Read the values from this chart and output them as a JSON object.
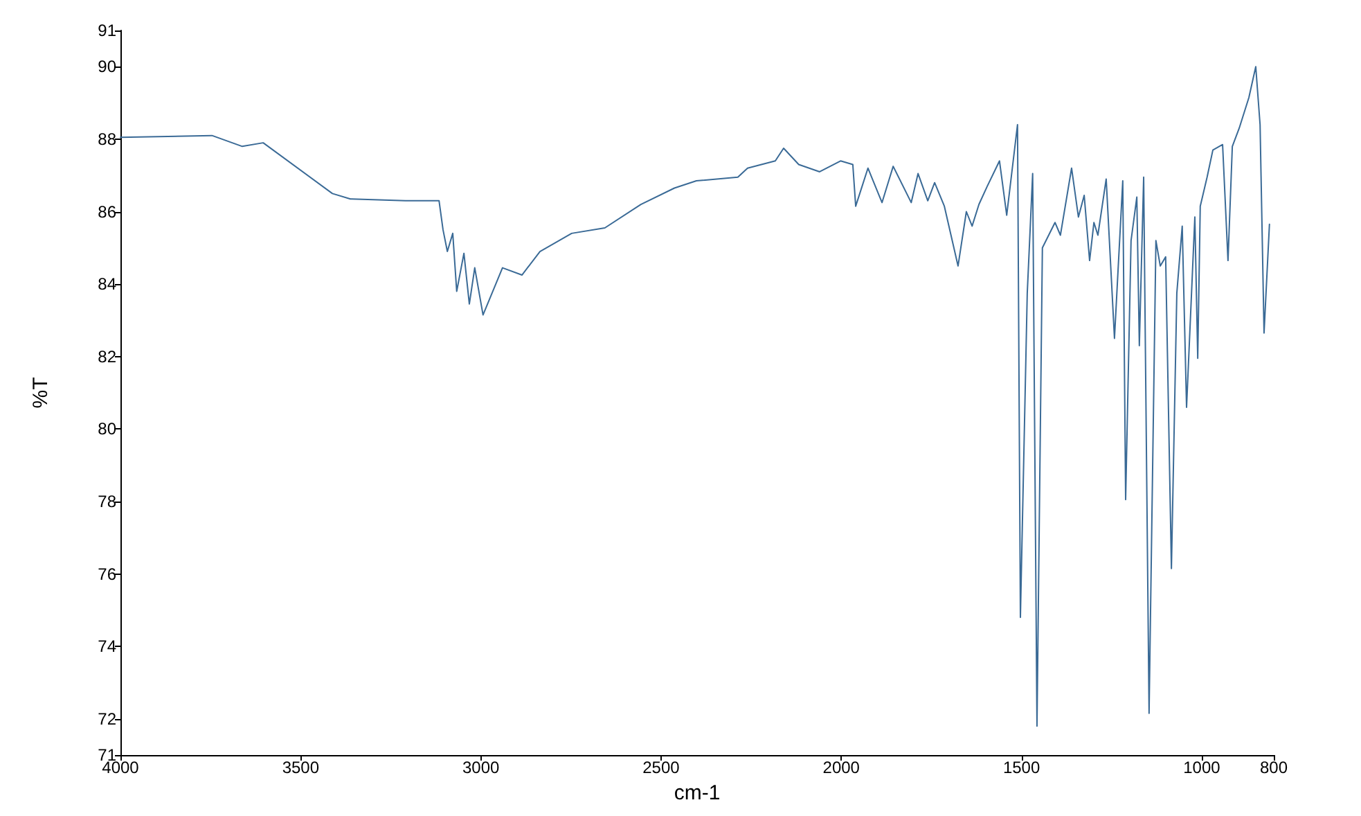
{
  "chart_data": {
    "type": "line",
    "xlabel": "cm-1",
    "ylabel": "%T",
    "xlim": [
      4000,
      800
    ],
    "xticks": [
      4000,
      3500,
      3000,
      2500,
      2000,
      1500,
      1000,
      800
    ],
    "ylim": [
      71,
      91
    ],
    "yticks": [
      71,
      72,
      74,
      76,
      78,
      80,
      82,
      84,
      86,
      88,
      90,
      91
    ],
    "grid": false,
    "marker": "none",
    "line_style": "solid",
    "series": [
      {
        "color": "#3a6a96",
        "x": [
          4000,
          3746,
          3662,
          3604,
          3412,
          3362,
          3209,
          3116,
          3105,
          3093,
          3078,
          3067,
          3047,
          3032,
          3017,
          2994,
          2940,
          2886,
          2836,
          2748,
          2656,
          2556,
          2463,
          2402,
          2287,
          2260,
          2183,
          2160,
          2118,
          2060,
          2002,
          1968,
          1960,
          1926,
          1887,
          1856,
          1806,
          1787,
          1760,
          1741,
          1714,
          1676,
          1653,
          1637,
          1618,
          1595,
          1561,
          1541,
          1511,
          1503,
          1484,
          1469,
          1457,
          1442,
          1407,
          1392,
          1361,
          1342,
          1326,
          1311,
          1299,
          1288,
          1265,
          1242,
          1219,
          1211,
          1196,
          1180,
          1173,
          1161,
          1146,
          1127,
          1115,
          1100,
          1084,
          1069,
          1054,
          1042,
          1019,
          1011,
          1004,
          985,
          969,
          942,
          927,
          915,
          896,
          869,
          850,
          838,
          827,
          812
        ],
        "values": [
          88.05,
          88.1,
          87.8,
          87.9,
          86.5,
          86.35,
          86.3,
          86.3,
          85.5,
          84.9,
          85.4,
          83.8,
          84.85,
          83.45,
          84.45,
          83.15,
          84.45,
          84.25,
          84.9,
          85.4,
          85.55,
          86.2,
          86.65,
          86.85,
          86.95,
          87.2,
          87.4,
          87.75,
          87.3,
          87.1,
          87.4,
          87.3,
          86.15,
          87.2,
          86.25,
          87.25,
          86.25,
          87.05,
          86.3,
          86.8,
          86.15,
          84.5,
          86.0,
          85.6,
          86.2,
          86.7,
          87.4,
          85.9,
          88.4,
          74.8,
          83.75,
          87.05,
          71.8,
          85.0,
          85.7,
          85.35,
          87.2,
          85.85,
          86.45,
          84.65,
          85.7,
          85.35,
          86.9,
          82.5,
          86.85,
          78.05,
          85.2,
          86.4,
          82.3,
          86.95,
          72.15,
          85.2,
          84.5,
          84.75,
          76.15,
          83.75,
          85.6,
          80.6,
          85.85,
          81.95,
          86.15,
          86.95,
          87.7,
          87.85,
          84.65,
          87.8,
          88.3,
          89.15,
          90.0,
          88.4,
          82.65,
          85.65
        ]
      }
    ]
  }
}
